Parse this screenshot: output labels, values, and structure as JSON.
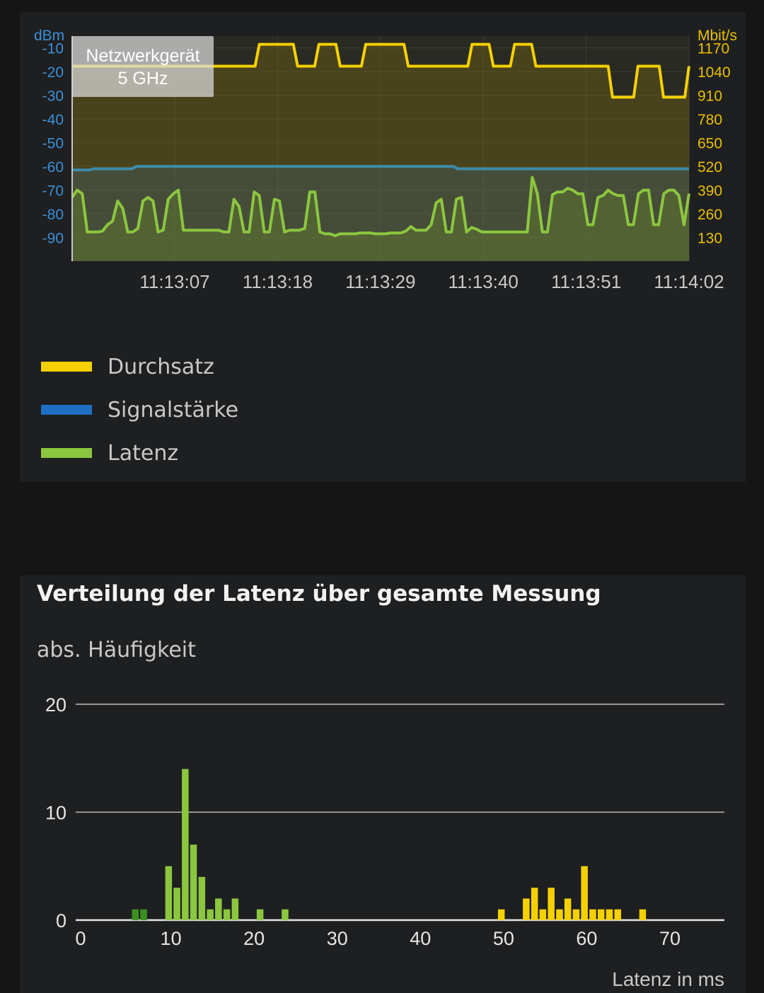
{
  "live_chart": {
    "left_axis_unit": "dBm",
    "right_axis_unit": "Mbit/s",
    "left_ticks": [
      "-10",
      "-20",
      "-30",
      "-40",
      "-50",
      "-60",
      "-70",
      "-80",
      "-90"
    ],
    "right_ticks": [
      "1170",
      "1040",
      "910",
      "780",
      "650",
      "520",
      "390",
      "260",
      "130"
    ],
    "time_ticks": [
      "11:13:07",
      "11:13:18",
      "11:13:29",
      "11:13:40",
      "11:13:51",
      "11:14:02"
    ],
    "overlay": {
      "line1": "Netzwerkgerät",
      "line2": "5 GHz"
    },
    "colors": {
      "throughput": "#f5d000",
      "signal": "#2a7fc8",
      "signal_line": "#3f8aa8",
      "latency": "#8cc63f",
      "left_axis": "#3d8fd6",
      "right_axis": "#e8c000"
    }
  },
  "legend": [
    {
      "label": "Durchsatz",
      "color": "#f5d000"
    },
    {
      "label": "Signalstärke",
      "color": "#1f6fc2"
    },
    {
      "label": "Latenz",
      "color": "#8cc63f"
    }
  ],
  "histogram": {
    "title": "Verteilung der Latenz über gesamte Messung",
    "y_label": "abs. Häufigkeit",
    "x_label": "Latenz in ms"
  },
  "chart_data": [
    {
      "type": "line",
      "title": "",
      "x_ticks": [
        "11:13:07",
        "11:13:18",
        "11:13:29",
        "11:13:40",
        "11:13:51",
        "11:14:02"
      ],
      "left_axis": {
        "label": "dBm",
        "ylim": [
          -100,
          -5
        ]
      },
      "right_axis": {
        "label": "Mbit/s",
        "ylim": [
          0,
          1235
        ]
      },
      "series": [
        {
          "name": "Durchsatz",
          "axis": "right",
          "values": [
            1070,
            1070,
            1070,
            1070,
            1070,
            1070,
            1070,
            1070,
            1070,
            1070,
            1070,
            1070,
            1070,
            1070,
            1070,
            1070,
            1070,
            1070,
            1070,
            1070,
            1070,
            1070,
            1070,
            1070,
            1070,
            1070,
            1070,
            1070,
            1070,
            1070,
            1070,
            1070,
            1070,
            1070,
            1070,
            1070,
            1070,
            1070,
            1070,
            1070,
            1070,
            1070,
            1070,
            1070,
            1190,
            1190,
            1190,
            1190,
            1190,
            1190,
            1190,
            1190,
            1190,
            1070,
            1070,
            1070,
            1070,
            1070,
            1190,
            1190,
            1190,
            1190,
            1190,
            1070,
            1070,
            1070,
            1070,
            1070,
            1070,
            1190,
            1190,
            1190,
            1190,
            1190,
            1190,
            1190,
            1190,
            1190,
            1190,
            1070,
            1070,
            1070,
            1070,
            1070,
            1070,
            1070,
            1070,
            1070,
            1070,
            1070,
            1070,
            1070,
            1070,
            1070,
            1190,
            1190,
            1190,
            1190,
            1190,
            1070,
            1070,
            1070,
            1070,
            1070,
            1190,
            1190,
            1190,
            1190,
            1190,
            1070,
            1070,
            1070,
            1070,
            1070,
            1070,
            1070,
            1070,
            1070,
            1070,
            1070,
            1070,
            1070,
            1070,
            1070,
            1070,
            1070,
            1070,
            900,
            900,
            900,
            900,
            900,
            900,
            1070,
            1070,
            1070,
            1070,
            1070,
            1070,
            900,
            900,
            900,
            900,
            900,
            900,
            1070
          ]
        },
        {
          "name": "Signalstärke",
          "axis": "left",
          "values": [
            -61.5,
            -61.5,
            -61.5,
            -61.5,
            -61.5,
            -61,
            -61,
            -61,
            -61,
            -61,
            -61,
            -61,
            -61,
            -61,
            -61,
            -60,
            -60,
            -60,
            -60,
            -60,
            -60,
            -60,
            -60,
            -60,
            -60,
            -60,
            -60,
            -60,
            -60,
            -60,
            -60,
            -60,
            -60,
            -60,
            -60,
            -60,
            -60,
            -60,
            -60,
            -60,
            -60,
            -60,
            -60,
            -60,
            -60,
            -60,
            -60,
            -60,
            -60,
            -60,
            -60,
            -60,
            -60,
            -60,
            -60,
            -60,
            -60,
            -60,
            -60,
            -60,
            -60,
            -60,
            -60,
            -60,
            -60,
            -60,
            -60,
            -60,
            -60,
            -60,
            -60,
            -60,
            -60,
            -60,
            -60,
            -60,
            -60,
            -60,
            -60,
            -60,
            -60,
            -60,
            -60,
            -60,
            -60,
            -60,
            -60,
            -60,
            -60,
            -60,
            -61,
            -61,
            -61,
            -61,
            -61,
            -61,
            -61,
            -61,
            -61,
            -61,
            -61,
            -61,
            -61,
            -61,
            -61,
            -61,
            -61,
            -61,
            -61,
            -61,
            -61,
            -61,
            -61,
            -61,
            -61,
            -61,
            -61,
            -61,
            -61,
            -61,
            -61,
            -61,
            -61,
            -61,
            -61,
            -61,
            -61,
            -61,
            -61,
            -61,
            -61,
            -61,
            -61,
            -61,
            -61,
            -61,
            -61,
            -61,
            -61,
            -61,
            -61,
            -61,
            -61,
            -61,
            -61
          ]
        }
      ],
      "latency_trace_note": "",
      "latency": {
        "name": "Latenz",
        "values": [
          350,
          390,
          370,
          160,
          160,
          160,
          165,
          200,
          220,
          330,
          290,
          160,
          160,
          180,
          330,
          350,
          330,
          160,
          170,
          340,
          370,
          390,
          170,
          170,
          170,
          170,
          170,
          170,
          170,
          170,
          160,
          160,
          340,
          300,
          160,
          160,
          380,
          360,
          160,
          160,
          340,
          330,
          160,
          170,
          170,
          170,
          180,
          380,
          380,
          160,
          150,
          150,
          140,
          150,
          150,
          150,
          150,
          155,
          155,
          155,
          150,
          150,
          150,
          155,
          155,
          155,
          165,
          190,
          170,
          170,
          170,
          200,
          320,
          340,
          160,
          160,
          340,
          350,
          160,
          185,
          175,
          160,
          160,
          160,
          160,
          160,
          160,
          160,
          160,
          160,
          160,
          460,
          370,
          160,
          160,
          365,
          380,
          380,
          400,
          390,
          370,
          370,
          200,
          200,
          350,
          360,
          390,
          370,
          360,
          360,
          200,
          200,
          370,
          390,
          390,
          200,
          200,
          370,
          390,
          390,
          360,
          200,
          370
        ]
      }
    },
    {
      "type": "bar",
      "title": "Verteilung der Latenz über gesamte Messung",
      "xlabel": "Latenz in ms",
      "ylabel": "abs. Häufigkeit",
      "xlim": [
        0,
        77
      ],
      "ylim": [
        0,
        20
      ],
      "x_ticks": [
        0,
        10,
        20,
        30,
        40,
        50,
        60,
        70
      ],
      "y_ticks": [
        0,
        10,
        20
      ],
      "series": [
        {
          "color": "#3c8f1e",
          "x": [
            6,
            7
          ],
          "values": [
            1,
            1
          ]
        },
        {
          "color": "#8cc63f",
          "x": [
            10,
            11,
            12,
            13,
            14,
            15,
            16,
            17,
            18,
            21,
            24
          ],
          "values": [
            5,
            3,
            14,
            7,
            4,
            1,
            2,
            1,
            2,
            1,
            1
          ]
        },
        {
          "color": "#f5d000",
          "x": [
            50,
            53,
            54,
            55,
            56,
            57,
            58,
            59,
            60,
            61,
            62,
            63,
            64,
            67
          ],
          "values": [
            1,
            2,
            3,
            1,
            3,
            1,
            2,
            1,
            5,
            1,
            1,
            1,
            1,
            1
          ]
        }
      ]
    }
  ]
}
